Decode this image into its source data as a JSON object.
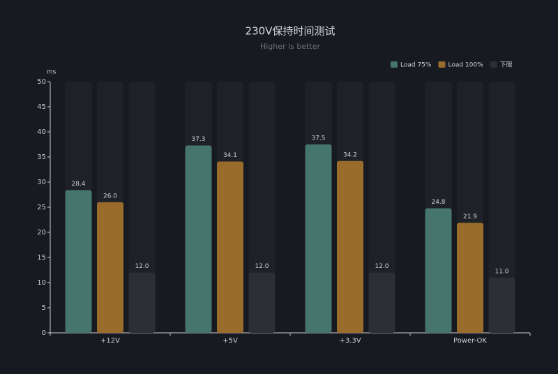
{
  "chart_data": {
    "type": "bar",
    "title": "230V保持时间测试",
    "subtitle": "Higher is better",
    "y_label": "ms",
    "categories": [
      "+12V",
      "+5V",
      "+3.3V",
      "Power-OK"
    ],
    "series": [
      {
        "name": "Load 75%",
        "color": "#46756d",
        "values": [
          28.4,
          37.3,
          37.5,
          24.8
        ],
        "value_labels": [
          "28.4",
          "37.3",
          "37.5",
          "24.8"
        ]
      },
      {
        "name": "Load 100%",
        "color": "#9a6c2b",
        "values": [
          26,
          34.1,
          34.2,
          21.9
        ],
        "value_labels": [
          "26.0",
          "34.1",
          "34.2",
          "21.9"
        ]
      },
      {
        "name": "下限",
        "color": "#2e2f34",
        "values": [
          12,
          12,
          12,
          11
        ],
        "value_labels": [
          "12.0",
          "12.0",
          "12.0",
          "11.0"
        ]
      }
    ],
    "ylim": [
      0,
      50
    ],
    "yticks": [
      0,
      5,
      10,
      15,
      20,
      25,
      30,
      35,
      40,
      45,
      50
    ],
    "legend": "top-right"
  }
}
